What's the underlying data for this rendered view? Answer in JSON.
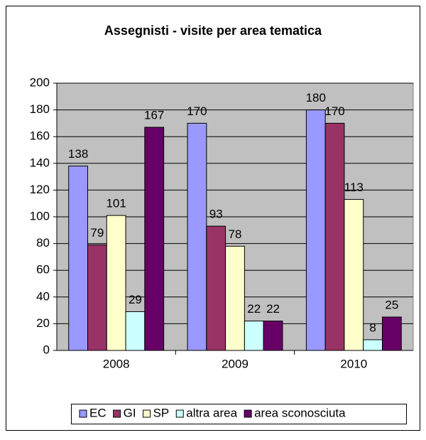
{
  "chart_data": {
    "type": "bar",
    "title": "Assegnisti - visite per area tematica",
    "categories": [
      "2008",
      "2009",
      "2010"
    ],
    "series": [
      {
        "name": "EC",
        "color": "#9999ff",
        "values": [
          138,
          170,
          180
        ]
      },
      {
        "name": "GI",
        "color": "#993366",
        "values": [
          79,
          93,
          170
        ]
      },
      {
        "name": "SP",
        "color": "#ffffcc",
        "values": [
          101,
          78,
          113
        ]
      },
      {
        "name": "altra area",
        "color": "#ccffff",
        "values": [
          29,
          22,
          8
        ]
      },
      {
        "name": "area sconosciuta",
        "color": "#660066",
        "values": [
          167,
          22,
          25
        ]
      }
    ],
    "ylim": [
      0,
      200
    ],
    "yticks": [
      0,
      20,
      40,
      60,
      80,
      100,
      120,
      140,
      160,
      180,
      200
    ],
    "grid": true,
    "legend": "bottom"
  }
}
